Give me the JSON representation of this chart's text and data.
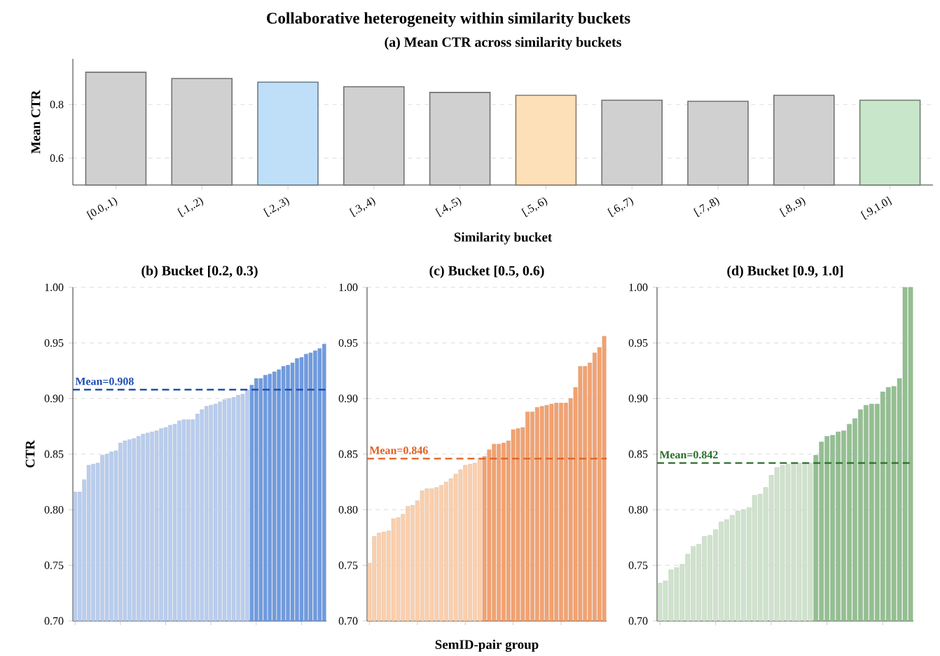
{
  "chart_data": [
    {
      "type": "bar",
      "title": "Collaborative heterogeneity within similarity buckets",
      "subtitle": "(a) Mean CTR across similarity buckets",
      "xlabel": "Similarity bucket",
      "ylabel": "Mean CTR",
      "categories": [
        "[0.0,.1)",
        "[.1,.2)",
        "[.2,.3)",
        "[.3,.4)",
        "[.4,.5)",
        "[.5,.6)",
        "[.6,.7)",
        "[.7,.8)",
        "[.8,.9)",
        "[.9,1.0]"
      ],
      "values": [
        0.92,
        0.897,
        0.883,
        0.866,
        0.845,
        0.834,
        0.816,
        0.812,
        0.834,
        0.816
      ],
      "colors": [
        "#d0d0d0",
        "#d0d0d0",
        "#bfdff8",
        "#d0d0d0",
        "#d0d0d0",
        "#fde0b8",
        "#d0d0d0",
        "#d0d0d0",
        "#d0d0d0",
        "#c8e6c9"
      ],
      "ylim": [
        0.5,
        0.97
      ],
      "yticks": [
        0.6,
        0.8
      ],
      "grid": "y"
    },
    {
      "type": "bar",
      "title": "(b) Bucket [0.2, 0.3)",
      "ylabel": "CTR",
      "tick_labels": "y",
      "categories": [
        null,
        null,
        null,
        null,
        null,
        null,
        null,
        null,
        null,
        null,
        null,
        null,
        null,
        null,
        null,
        null,
        null,
        null,
        null,
        null,
        null,
        null,
        null,
        null,
        null,
        null,
        null,
        null,
        null,
        null,
        null,
        null,
        null,
        null,
        null,
        null,
        null,
        null,
        null,
        null,
        null,
        null,
        null,
        null,
        null,
        null,
        null,
        null,
        null,
        null,
        null,
        null,
        null,
        null,
        null,
        null
      ],
      "values": [
        0.816,
        0.816,
        0.827,
        0.84,
        0.841,
        0.842,
        0.849,
        0.85,
        0.852,
        0.853,
        0.86,
        0.862,
        0.863,
        0.864,
        0.866,
        0.868,
        0.869,
        0.87,
        0.871,
        0.873,
        0.874,
        0.876,
        0.877,
        0.88,
        0.881,
        0.881,
        0.881,
        0.886,
        0.89,
        0.893,
        0.894,
        0.895,
        0.897,
        0.899,
        0.9,
        0.901,
        0.903,
        0.904,
        0.908,
        0.912,
        0.918,
        0.918,
        0.921,
        0.922,
        0.924,
        0.926,
        0.929,
        0.93,
        0.932,
        0.936,
        0.937,
        0.94,
        0.941,
        0.943,
        0.945,
        0.949
      ],
      "colors": [
        "#b9cdee",
        "#b9cdee",
        "#b9cdee",
        "#b9cdee",
        "#b9cdee",
        "#b9cdee",
        "#b9cdee",
        "#b9cdee",
        "#b9cdee",
        "#b9cdee",
        "#b9cdee",
        "#b9cdee",
        "#b9cdee",
        "#b9cdee",
        "#b9cdee",
        "#b9cdee",
        "#b9cdee",
        "#b9cdee",
        "#b9cdee",
        "#b9cdee",
        "#b9cdee",
        "#b9cdee",
        "#b9cdee",
        "#b9cdee",
        "#b9cdee",
        "#b9cdee",
        "#b9cdee",
        "#b9cdee",
        "#b9cdee",
        "#b9cdee",
        "#b9cdee",
        "#b9cdee",
        "#b9cdee",
        "#b9cdee",
        "#b9cdee",
        "#b9cdee",
        "#b9cdee",
        "#b9cdee",
        "#b9cdee",
        "#6f9be0",
        "#6f9be0",
        "#6f9be0",
        "#6f9be0",
        "#6f9be0",
        "#6f9be0",
        "#6f9be0",
        "#6f9be0",
        "#6f9be0",
        "#6f9be0",
        "#6f9be0",
        "#6f9be0",
        "#6f9be0",
        "#6f9be0",
        "#6f9be0",
        "#6f9be0",
        "#6f9be0"
      ],
      "ref_lines": [
        {
          "axis": "y",
          "value": 0.908,
          "label": "Mean=0.908",
          "color": "#1f4fb0",
          "line_style": "dashed"
        }
      ],
      "ylim": [
        0.7,
        1.0
      ],
      "yticks": [
        {
          "value": 0.7,
          "label": "0.70"
        },
        {
          "value": 0.75,
          "label": "0.75"
        },
        {
          "value": 0.8,
          "label": "0.80"
        },
        {
          "value": 0.85,
          "label": "0.85"
        },
        {
          "value": 0.9,
          "label": "0.90"
        },
        {
          "value": 0.95,
          "label": "0.95"
        },
        {
          "value": 1.0,
          "label": "1.00"
        }
      ],
      "grid": "y"
    },
    {
      "type": "bar",
      "title": "(c) Bucket [0.5, 0.6)",
      "xlabel": "SemID-pair group",
      "tick_labels": "y",
      "categories": [
        null,
        null,
        null,
        null,
        null,
        null,
        null,
        null,
        null,
        null,
        null,
        null,
        null,
        null,
        null,
        null,
        null,
        null,
        null,
        null,
        null,
        null,
        null,
        null,
        null,
        null,
        null,
        null,
        null,
        null,
        null,
        null,
        null,
        null,
        null,
        null,
        null,
        null,
        null,
        null,
        null,
        null,
        null,
        null,
        null,
        null,
        null,
        null,
        null,
        null
      ],
      "values": [
        0.752,
        0.776,
        0.779,
        0.78,
        0.781,
        0.792,
        0.793,
        0.796,
        0.803,
        0.804,
        0.808,
        0.817,
        0.819,
        0.819,
        0.82,
        0.822,
        0.825,
        0.828,
        0.832,
        0.836,
        0.84,
        0.841,
        0.842,
        0.846,
        0.848,
        0.854,
        0.859,
        0.859,
        0.86,
        0.862,
        0.872,
        0.873,
        0.874,
        0.888,
        0.888,
        0.892,
        0.893,
        0.894,
        0.895,
        0.896,
        0.896,
        0.896,
        0.9,
        0.91,
        0.929,
        0.929,
        0.932,
        0.941,
        0.946,
        0.956
      ],
      "colors": [
        "#fbcfad",
        "#fbcfad",
        "#fbcfad",
        "#fbcfad",
        "#fbcfad",
        "#fbcfad",
        "#fbcfad",
        "#fbcfad",
        "#fbcfad",
        "#fbcfad",
        "#fbcfad",
        "#fbcfad",
        "#fbcfad",
        "#fbcfad",
        "#fbcfad",
        "#fbcfad",
        "#fbcfad",
        "#fbcfad",
        "#fbcfad",
        "#fbcfad",
        "#fbcfad",
        "#fbcfad",
        "#fbcfad",
        "#fbcfad",
        "#f2a271",
        "#f2a271",
        "#f2a271",
        "#f2a271",
        "#f2a271",
        "#f2a271",
        "#f2a271",
        "#f2a271",
        "#f2a271",
        "#f2a271",
        "#f2a271",
        "#f2a271",
        "#f2a271",
        "#f2a271",
        "#f2a271",
        "#f2a271",
        "#f2a271",
        "#f2a271",
        "#f2a271",
        "#f2a271",
        "#f2a271",
        "#f2a271",
        "#f2a271",
        "#f2a271",
        "#f2a271",
        "#f2a271"
      ],
      "ref_lines": [
        {
          "axis": "y",
          "value": 0.846,
          "label": "Mean=0.846",
          "color": "#e06020",
          "line_style": "dashed"
        }
      ],
      "ylim": [
        0.7,
        1.0
      ],
      "yticks": [
        {
          "value": 0.7,
          "label": "0.70"
        },
        {
          "value": 0.75,
          "label": "0.75"
        },
        {
          "value": 0.8,
          "label": "0.80"
        },
        {
          "value": 0.85,
          "label": "0.85"
        },
        {
          "value": 0.9,
          "label": "0.90"
        },
        {
          "value": 0.95,
          "label": "0.95"
        },
        {
          "value": 1.0,
          "label": "1.00"
        }
      ],
      "grid": "y"
    },
    {
      "type": "bar",
      "title": "(d) Bucket [0.9, 1.0]",
      "tick_labels": "y",
      "categories": [
        null,
        null,
        null,
        null,
        null,
        null,
        null,
        null,
        null,
        null,
        null,
        null,
        null,
        null,
        null,
        null,
        null,
        null,
        null,
        null,
        null,
        null,
        null,
        null,
        null,
        null,
        null,
        null,
        null,
        null,
        null,
        null,
        null,
        null,
        null,
        null,
        null,
        null,
        null,
        null,
        null,
        null,
        null,
        null,
        null,
        null
      ],
      "values": [
        0.734,
        0.736,
        0.746,
        0.748,
        0.751,
        0.76,
        0.767,
        0.769,
        0.776,
        0.777,
        0.782,
        0.789,
        0.791,
        0.795,
        0.799,
        0.8,
        0.802,
        0.813,
        0.814,
        0.82,
        0.831,
        0.838,
        0.84,
        0.841,
        0.842,
        0.842,
        0.842,
        0.842,
        0.849,
        0.861,
        0.866,
        0.867,
        0.87,
        0.871,
        0.877,
        0.882,
        0.89,
        0.894,
        0.895,
        0.895,
        0.906,
        0.91,
        0.911,
        0.918,
        1.0,
        1.0
      ],
      "colors": [
        "#cfe3cc",
        "#cfe3cc",
        "#cfe3cc",
        "#cfe3cc",
        "#cfe3cc",
        "#cfe3cc",
        "#cfe3cc",
        "#cfe3cc",
        "#cfe3cc",
        "#cfe3cc",
        "#cfe3cc",
        "#cfe3cc",
        "#cfe3cc",
        "#cfe3cc",
        "#cfe3cc",
        "#cfe3cc",
        "#cfe3cc",
        "#cfe3cc",
        "#cfe3cc",
        "#cfe3cc",
        "#cfe3cc",
        "#cfe3cc",
        "#cfe3cc",
        "#cfe3cc",
        "#cfe3cc",
        "#cfe3cc",
        "#cfe3cc",
        "#cfe3cc",
        "#94bf92",
        "#94bf92",
        "#94bf92",
        "#94bf92",
        "#94bf92",
        "#94bf92",
        "#94bf92",
        "#94bf92",
        "#94bf92",
        "#94bf92",
        "#94bf92",
        "#94bf92",
        "#94bf92",
        "#94bf92",
        "#94bf92",
        "#94bf92",
        "#94bf92",
        "#94bf92"
      ],
      "ref_lines": [
        {
          "axis": "y",
          "value": 0.842,
          "label": "Mean=0.842",
          "color": "#2a6e2a",
          "line_style": "dashed"
        }
      ],
      "ylim": [
        0.7,
        1.0
      ],
      "yticks": [
        {
          "value": 0.7,
          "label": "0.70"
        },
        {
          "value": 0.75,
          "label": "0.75"
        },
        {
          "value": 0.8,
          "label": "0.80"
        },
        {
          "value": 0.85,
          "label": "0.85"
        },
        {
          "value": 0.9,
          "label": "0.90"
        },
        {
          "value": 0.95,
          "label": "0.95"
        },
        {
          "value": 1.0,
          "label": "1.00"
        }
      ],
      "grid": "y"
    }
  ]
}
